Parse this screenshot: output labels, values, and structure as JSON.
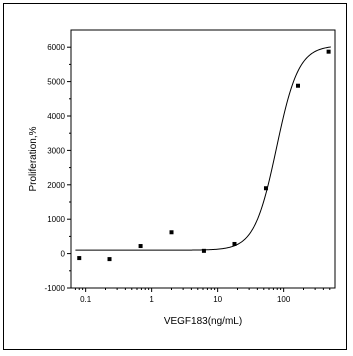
{
  "chart_data": {
    "type": "scatter",
    "title": "",
    "xlabel": "VEGF183(ng/mL)",
    "ylabel": "Proliferation,%",
    "xscale": "log",
    "xlim": [
      0.06,
      600
    ],
    "ylim": [
      -1000,
      6500
    ],
    "xticks": [
      0.1,
      1,
      10,
      100
    ],
    "xtick_labels": [
      "0.1",
      "1",
      "10",
      "100"
    ],
    "yticks": [
      -1000,
      0,
      1000,
      2000,
      3000,
      4000,
      5000,
      6000
    ],
    "ytick_labels": [
      "-1000",
      "0",
      "1000",
      "2000",
      "3000",
      "4000",
      "5000",
      "6000"
    ],
    "grid": false,
    "series": [
      {
        "points": [
          {
            "x": 0.08,
            "y": -130
          },
          {
            "x": 0.23,
            "y": -160
          },
          {
            "x": 0.68,
            "y": 220
          },
          {
            "x": 2.0,
            "y": 620
          },
          {
            "x": 6.2,
            "y": 80
          },
          {
            "x": 18,
            "y": 280
          },
          {
            "x": 54,
            "y": 1900
          },
          {
            "x": 165,
            "y": 4880
          },
          {
            "x": 480,
            "y": 5870
          }
        ],
        "fit": {
          "bottom": 100,
          "top": 6050,
          "ec50": 78,
          "hill": 2.6
        }
      }
    ]
  }
}
